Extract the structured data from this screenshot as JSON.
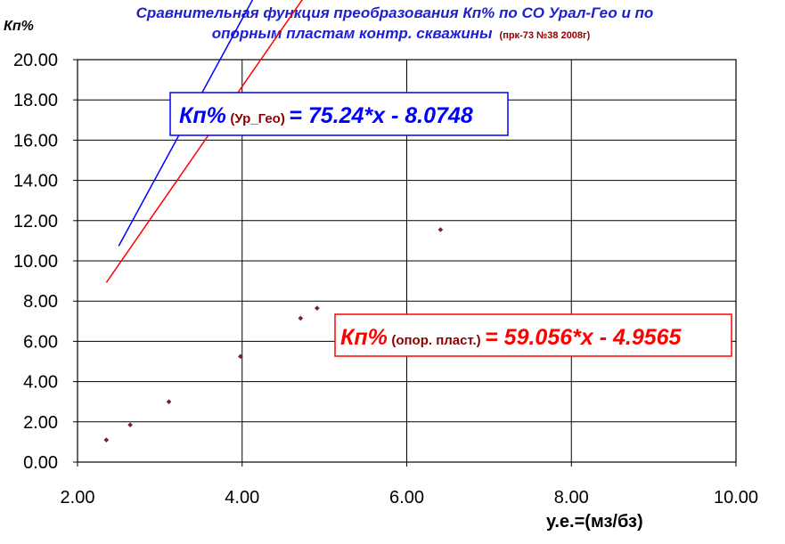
{
  "chart_data": {
    "type": "scatter",
    "title_line1": "Сравнительная функция преобразования Кп% по СО Урал-Гео и по",
    "title_line2": "опорным пластам контр. скважины",
    "title_note": "(прк-73 №38 2008г)",
    "ylabel": "Кп%",
    "xlabel": "у.е.=(мз/бз)",
    "xlim": [
      2,
      10
    ],
    "ylim": [
      0,
      20
    ],
    "x_ticks": [
      "2.00",
      "4.00",
      "6.00",
      "8.00",
      "10.00"
    ],
    "y_ticks": [
      "0.00",
      "2.00",
      "4.00",
      "6.00",
      "8.00",
      "10.00",
      "12.00",
      "14.00",
      "16.00",
      "18.00",
      "20.00"
    ],
    "grid": true,
    "series": [
      {
        "kind": "points",
        "color": "#7a1f3a",
        "x": [
          2.35,
          2.64,
          3.11,
          3.98,
          4.71,
          4.91,
          6.41
        ],
        "y": [
          1.1,
          1.85,
          3.0,
          5.25,
          7.15,
          7.65,
          11.55
        ]
      },
      {
        "kind": "line",
        "color": "#ff0000",
        "slope": 59.056,
        "intercept": -4.9565,
        "scale_x": 0.1,
        "x_range": [
          2.35,
          9.73
        ]
      },
      {
        "kind": "line",
        "color": "#0000ff",
        "slope": 75.24,
        "intercept": -8.0748,
        "scale_x": 0.1,
        "x_range": [
          2.5,
          8.15
        ]
      }
    ],
    "equations": [
      {
        "color": "#0000ff",
        "lead": "Кп%",
        "paren": "(Ур_Гео)",
        "paren_color": "#8b0000",
        "formula": "= 75.24*x - 8.0748",
        "formula_color": "#0000ff"
      },
      {
        "color": "#ff0000",
        "lead": "Кп%",
        "paren": "(опор. пласт.)",
        "paren_color": "#8b0000",
        "formula": "= 59.056*x - 4.9565",
        "formula_color": "#ff0000"
      }
    ]
  }
}
